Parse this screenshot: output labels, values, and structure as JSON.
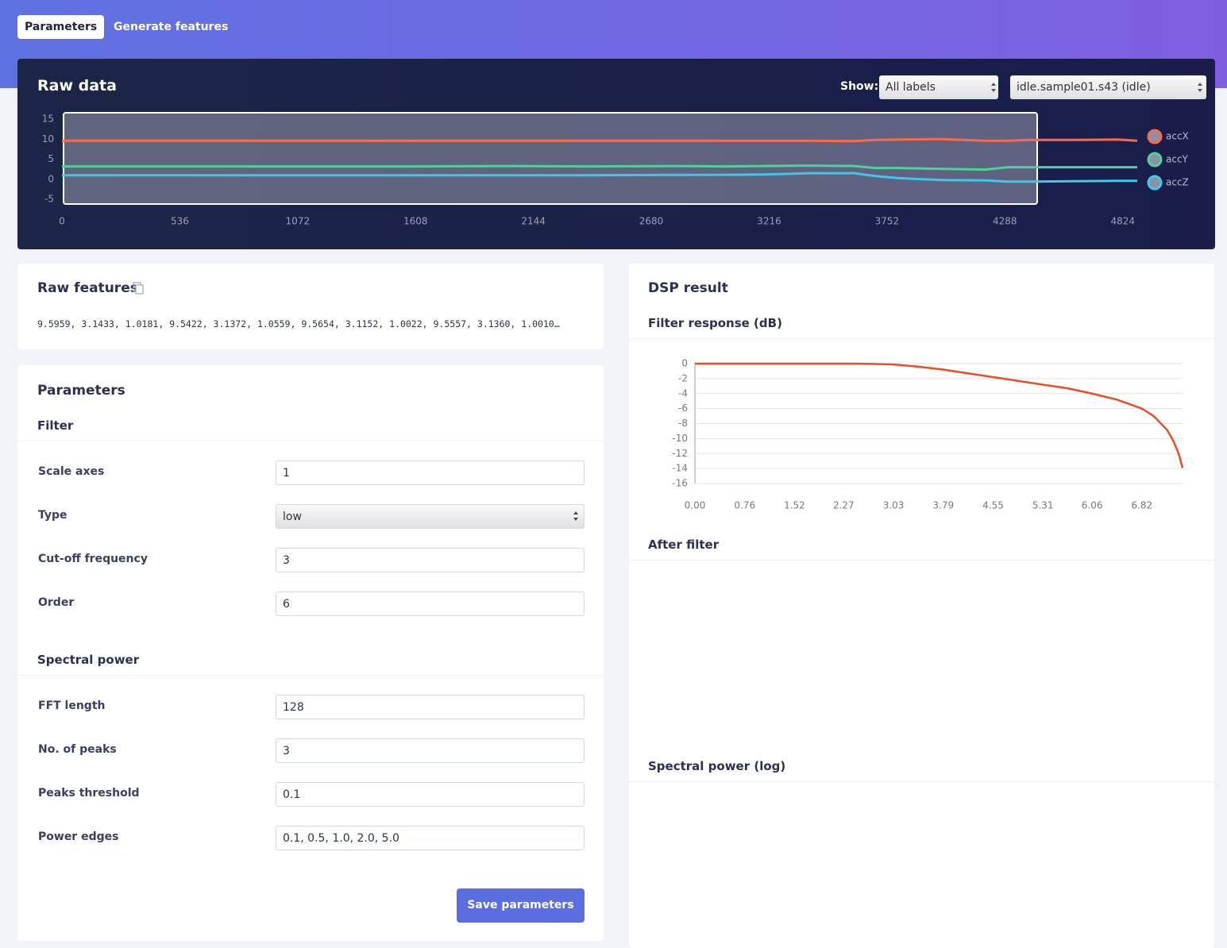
{
  "tabs": [
    "Parameters",
    "Generate features"
  ],
  "raw_data": {
    "title": "Raw data",
    "show_label": "Show:",
    "label_filter": "All labels",
    "sample": "idle.sample01.s43 (idle)",
    "chart": {
      "type": "line",
      "x": [
        0,
        400,
        800,
        1200,
        1600,
        2000,
        2400,
        2800,
        3000,
        3200,
        3400,
        3600,
        3700,
        3800,
        4000,
        4200,
        4300,
        4400,
        4600,
        4800,
        4890
      ],
      "series": [
        {
          "name": "accX",
          "color": "#fb6b4b",
          "values": [
            9.6,
            9.6,
            9.6,
            9.6,
            9.6,
            9.6,
            9.6,
            9.6,
            9.6,
            9.6,
            9.6,
            9.5,
            9.8,
            9.9,
            10.0,
            9.6,
            9.6,
            9.8,
            9.8,
            9.9,
            9.6
          ]
        },
        {
          "name": "accY",
          "color": "#4fd19a",
          "values": [
            3.2,
            3.2,
            3.2,
            3.2,
            3.2,
            3.3,
            3.2,
            3.3,
            3.2,
            3.3,
            3.4,
            3.3,
            2.8,
            2.8,
            2.6,
            2.4,
            3.0,
            3.0,
            3.0,
            3.0,
            3.0
          ]
        },
        {
          "name": "accZ",
          "color": "#3fc8e8",
          "values": [
            1.0,
            1.0,
            1.0,
            1.0,
            1.0,
            1.0,
            1.0,
            1.1,
            1.1,
            1.2,
            1.5,
            1.5,
            0.8,
            0.3,
            -0.2,
            -0.3,
            -0.6,
            -0.6,
            -0.5,
            -0.4,
            -0.4
          ]
        }
      ],
      "xlim": [
        0,
        4890
      ],
      "xticks": [
        0,
        536,
        1072,
        1608,
        2144,
        2680,
        3216,
        3752,
        4288,
        4824
      ],
      "ylim": [
        -5,
        15
      ],
      "yticks": [
        15,
        10,
        5,
        0,
        -5
      ],
      "grid": false,
      "legend": "right"
    }
  },
  "raw_features": {
    "title": "Raw features",
    "text": "9.5959, 3.1433, 1.0181, 9.5422, 3.1372, 1.0559, 9.5654, 3.1152, 1.0022, 9.5557, 3.1360, 1.0010…"
  },
  "parameters": {
    "title": "Parameters",
    "sections": [
      {
        "title": "Filter",
        "fields": [
          {
            "label": "Scale axes",
            "value": "1"
          },
          {
            "label": "Type",
            "value": "low",
            "kind": "select"
          },
          {
            "label": "Cut-off frequency",
            "value": "3"
          },
          {
            "label": "Order",
            "value": "6"
          }
        ]
      },
      {
        "title": "Spectral power",
        "fields": [
          {
            "label": "FFT length",
            "value": "128"
          },
          {
            "label": "No. of peaks",
            "value": "3"
          },
          {
            "label": "Peaks threshold",
            "value": "0.1"
          },
          {
            "label": "Power edges",
            "value": "0.1, 0.5, 1.0, 2.0, 5.0"
          }
        ]
      }
    ],
    "button": "Save parameters"
  },
  "dsp_result": {
    "title": "DSP result",
    "filter_response": {
      "title": "Filter response (dB)",
      "chart": {
        "type": "line",
        "x": [
          0,
          1,
          2,
          2.5,
          3.03,
          3.4,
          3.79,
          4.17,
          4.55,
          4.93,
          5.31,
          5.69,
          6.06,
          6.44,
          6.82,
          7.0,
          7.2,
          7.3,
          7.38,
          7.44
        ],
        "values": [
          0,
          0,
          0,
          0,
          -0.1,
          -0.4,
          -0.8,
          -1.3,
          -1.8,
          -2.3,
          -2.8,
          -3.3,
          -4.0,
          -4.8,
          -6.0,
          -7.0,
          -8.8,
          -10.3,
          -12.0,
          -13.9
        ],
        "color": "#f04a24",
        "xlim": [
          0,
          7.44
        ],
        "xticks": [
          {
            "value": 0,
            "label": "0.00"
          },
          0.76,
          1.52,
          2.27,
          3.03,
          3.79,
          4.55,
          5.31,
          6.06,
          6.82
        ],
        "ylim": [
          -16,
          0
        ],
        "yticks": [
          0,
          -2,
          -4,
          -6,
          -8,
          -10,
          -12,
          -14,
          -16
        ],
        "grid": true
      }
    },
    "after_filter": {
      "title": "After filter"
    },
    "spectral_power": {
      "title": "Spectral power (log)"
    }
  }
}
